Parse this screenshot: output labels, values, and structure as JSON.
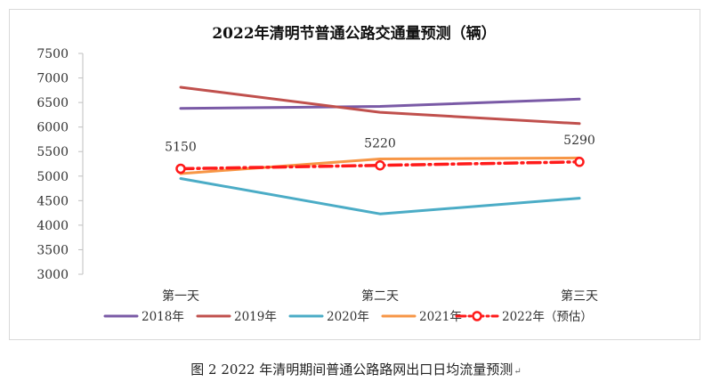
{
  "chart_data": {
    "type": "line",
    "title": "2022年清明节普通公路交通量预测（辆）",
    "categories": [
      "第一天",
      "第二天",
      "第三天"
    ],
    "ylim": [
      3000,
      7500
    ],
    "yticks": [
      3000,
      3500,
      4000,
      4500,
      5000,
      5500,
      6000,
      6500,
      7000,
      7500
    ],
    "xlabel": "",
    "ylabel": "",
    "legend_position": "bottom",
    "series": [
      {
        "name": "2018年",
        "values": [
          6380,
          6420,
          6570
        ],
        "color": "#7a5aa6",
        "dash": false,
        "markers": false
      },
      {
        "name": "2019年",
        "values": [
          6810,
          6300,
          6070
        ],
        "color": "#c0504d",
        "dash": false,
        "markers": false
      },
      {
        "name": "2020年",
        "values": [
          4950,
          4230,
          4550
        ],
        "color": "#4bacc6",
        "dash": false,
        "markers": false
      },
      {
        "name": "2021年",
        "values": [
          5050,
          5350,
          5370
        ],
        "color": "#f79646",
        "dash": false,
        "markers": false
      },
      {
        "name": "2022年（预估）",
        "values": [
          5150,
          5220,
          5290
        ],
        "color": "#ff1a1a",
        "dash": true,
        "markers": true
      }
    ],
    "data_labels": [
      "5150",
      "5220",
      "5290"
    ]
  },
  "caption": "图 2   2022 年清明期间普通公路路网出口日均流量预测",
  "caption_mark": "↵"
}
